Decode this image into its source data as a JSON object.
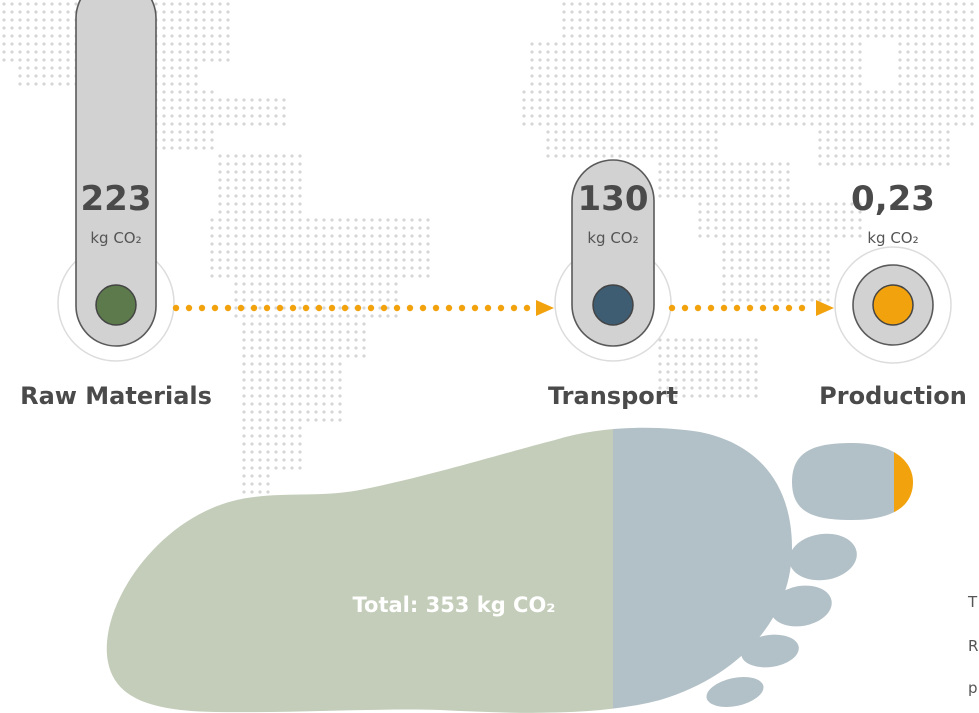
{
  "stages": [
    {
      "value": "223",
      "unit": "kg CO₂",
      "label": "Raw Materials",
      "color": "#5c7a4b"
    },
    {
      "value": "130",
      "unit": "kg CO₂",
      "label": "Transport",
      "color": "#3e5c72"
    },
    {
      "value": "0,23",
      "unit": "kg CO₂",
      "label": "Production",
      "color": "#f2a20c"
    }
  ],
  "footprint": {
    "total_label": "Total: 353 kg CO₂",
    "raw_color": "#c3cdb9",
    "transport_color": "#b2c0c7",
    "production_color": "#f2a20c"
  },
  "colors": {
    "pill": "#d3d2d2",
    "pill_border": "#5a5a5a",
    "arrow": "#f2a20c",
    "map_dots": "#d6d6d6",
    "text": "#4a4a4a"
  },
  "cut_text": [
    "T",
    "R",
    "p"
  ]
}
